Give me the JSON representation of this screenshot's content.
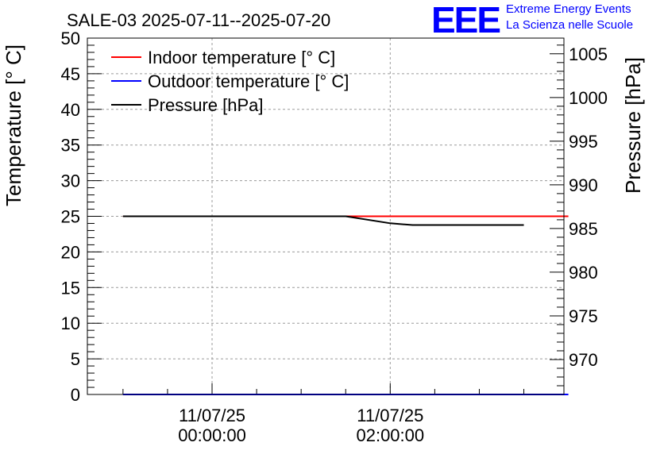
{
  "logo": {
    "letters": "EEE",
    "line1": "Extreme Energy Events",
    "line2": "La Scienza nelle Scuole",
    "color": "#0000ff"
  },
  "chart_data": {
    "type": "line",
    "title": "SALE-03 2025-07-11--2025-07-20",
    "xlabel": "",
    "ylabel": "Temperature [° C]",
    "y2label": "Pressure [hPa]",
    "x": [
      0,
      1,
      2,
      3,
      4,
      5,
      6,
      7,
      8,
      9,
      10
    ],
    "x_ticks": [
      {
        "x": 2,
        "line1": "11/07/25",
        "line2": "00:00:00"
      },
      {
        "x": 6,
        "line1": "11/07/25",
        "line2": "02:00:00"
      }
    ],
    "ylim": [
      0,
      50
    ],
    "y_ticks": [
      0,
      5,
      10,
      15,
      20,
      25,
      30,
      35,
      40,
      45,
      50
    ],
    "y2lim": [
      966,
      1006.8
    ],
    "y2_ticks": [
      970,
      975,
      980,
      985,
      990,
      995,
      1000,
      1005
    ],
    "xlim": [
      -0.8,
      9.9
    ],
    "grid": true,
    "legend_position": "top-left",
    "series": [
      {
        "name": "Indoor temperature [° C]",
        "axis": "left",
        "color": "#ff0000",
        "values": [
          25,
          25,
          25,
          25,
          25,
          25,
          25,
          25,
          25,
          25,
          25
        ]
      },
      {
        "name": "Outdoor temperature [° C]",
        "axis": "left",
        "color": "#0000ff",
        "values": [
          0,
          0,
          0,
          0,
          0,
          0,
          0,
          0,
          0,
          0,
          0
        ]
      },
      {
        "name": "Pressure [hPa]",
        "axis": "right",
        "color": "#000000",
        "values": [
          986.4,
          986.4,
          986.4,
          986.4,
          986.4,
          986.4,
          985.6,
          985.4,
          985.4,
          985.4,
          985.4
        ],
        "x": [
          0,
          1,
          2,
          3,
          4,
          5,
          6,
          6.5,
          7,
          8,
          9
        ]
      }
    ]
  }
}
